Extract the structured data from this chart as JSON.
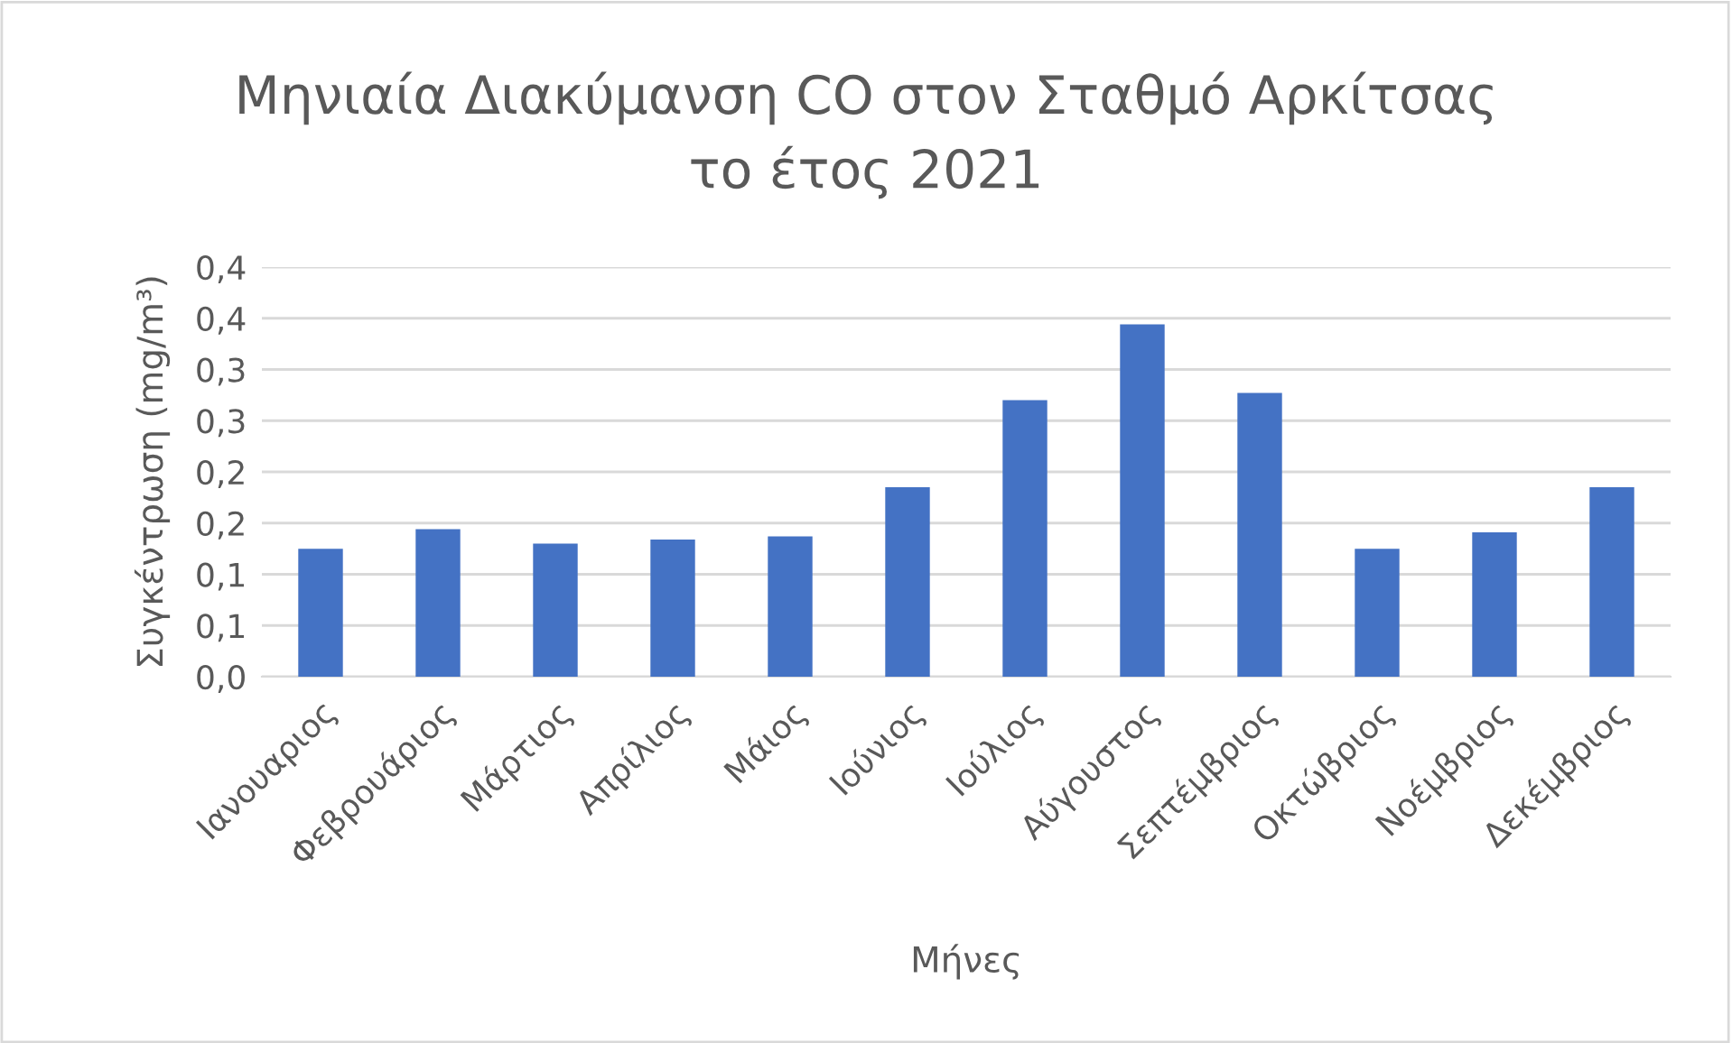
{
  "chart_data": {
    "type": "bar",
    "title": "Μηνιαία Διακύμανση CO στον Σταθμό Αρκίτσας\nτο έτος 2021",
    "xlabel": "Μήνες",
    "ylabel": "Συγκέντρωση (mg/m³)",
    "categories": [
      "Ιανουαριος",
      "Φεβρουάριος",
      "Μάρτιος",
      "Απρίλιος",
      "Μάιος",
      "Ιούνιος",
      "Ιούλιος",
      "Αύγουστος",
      "Σεπτέμβριος",
      "Οκτώβριος",
      "Νοέμβριος",
      "Δεκέμβριος"
    ],
    "values": [
      0.125,
      0.144,
      0.13,
      0.134,
      0.137,
      0.185,
      0.27,
      0.344,
      0.277,
      0.125,
      0.141,
      0.185
    ],
    "color": "#4472c4",
    "ylim": [
      0,
      0.4
    ],
    "yticks": [
      {
        "value": 0,
        "label": "0,0"
      },
      {
        "value": 0.05,
        "label": "0,1"
      },
      {
        "value": 0.1,
        "label": "0,1"
      },
      {
        "value": 0.15,
        "label": "0,2"
      },
      {
        "value": 0.2,
        "label": "0,2"
      },
      {
        "value": 0.25,
        "label": "0,3"
      },
      {
        "value": 0.3,
        "label": "0,3"
      },
      {
        "value": 0.35,
        "label": "0,4"
      },
      {
        "value": 0.4,
        "label": "0,4"
      }
    ],
    "grid": "y",
    "legend": false
  }
}
